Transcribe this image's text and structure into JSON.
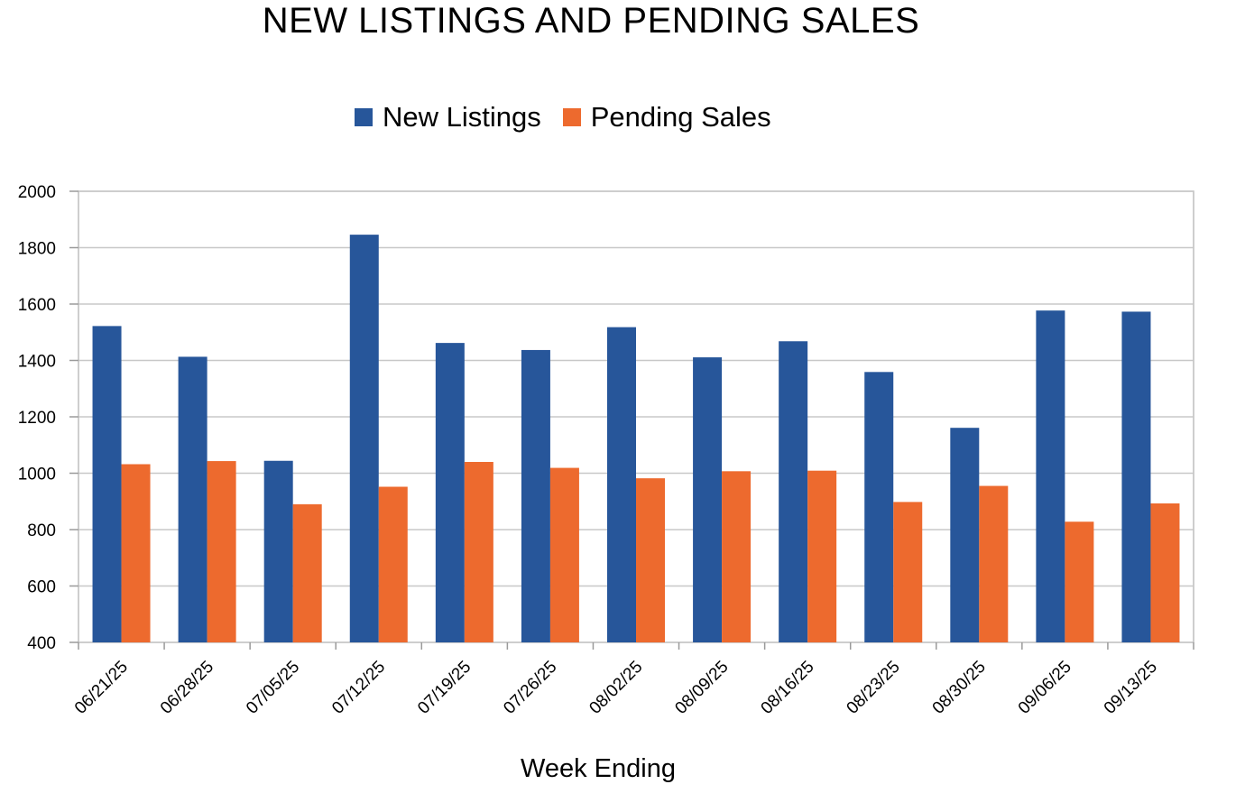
{
  "chart_data": {
    "type": "bar",
    "title": "NEW LISTINGS AND PENDING SALES",
    "xlabel": "Week Ending",
    "ylabel": "",
    "ylim": [
      400,
      2000
    ],
    "yticks": [
      400,
      600,
      800,
      1000,
      1200,
      1400,
      1600,
      1800,
      2000
    ],
    "grid": true,
    "legend_position": "top-center",
    "categories": [
      "06/21/25",
      "06/28/25",
      "07/05/25",
      "07/12/25",
      "07/19/25",
      "07/26/25",
      "08/02/25",
      "08/09/25",
      "08/16/25",
      "08/23/25",
      "08/30/25",
      "09/06/25",
      "09/13/25"
    ],
    "series": [
      {
        "name": "New Listings",
        "color": "#27569a",
        "values": [
          1522,
          1413,
          1044,
          1846,
          1462,
          1437,
          1518,
          1411,
          1468,
          1359,
          1161,
          1577,
          1573
        ]
      },
      {
        "name": "Pending Sales",
        "color": "#ed6a2e",
        "values": [
          1032,
          1043,
          890,
          952,
          1040,
          1019,
          982,
          1007,
          1009,
          898,
          955,
          828,
          893
        ]
      }
    ]
  }
}
